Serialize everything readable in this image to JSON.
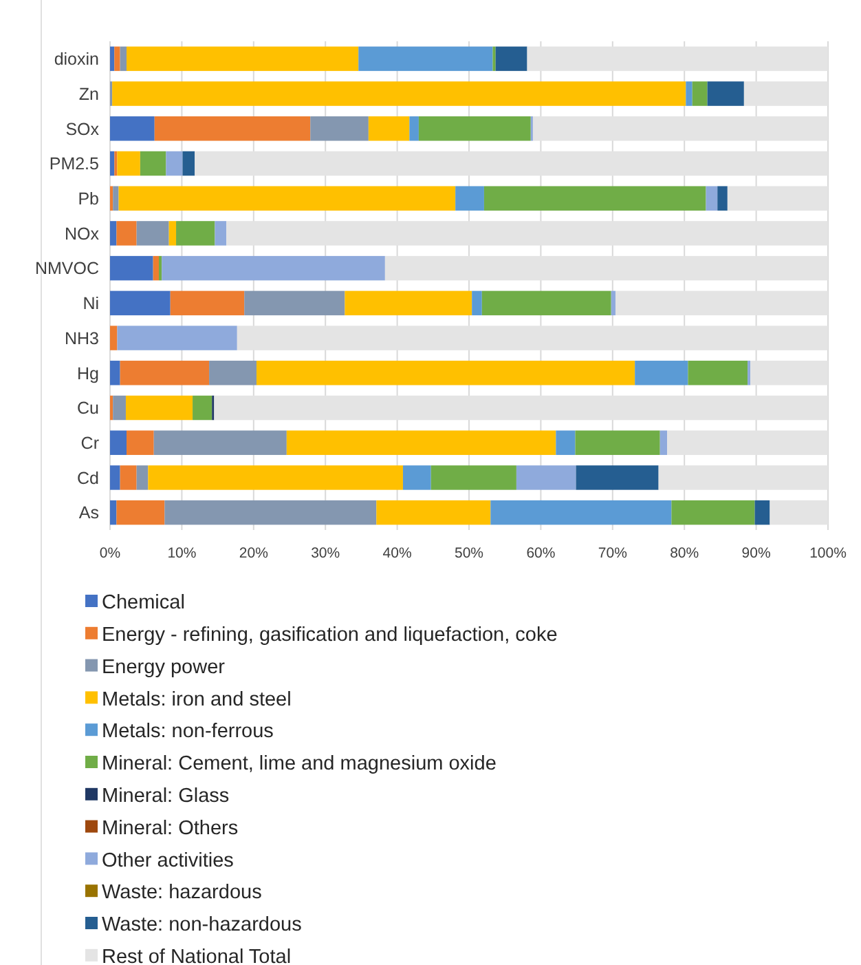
{
  "chart_data": {
    "type": "bar",
    "orientation": "horizontal",
    "stacked": true,
    "categories": [
      "dioxin",
      "Zn",
      "SOx",
      "PM2.5",
      "Pb",
      "NOx",
      "NMVOC",
      "Ni",
      "NH3",
      "Hg",
      "Cu",
      "Cr",
      "Cd",
      "As"
    ],
    "xlim": [
      0,
      100
    ],
    "xticks": [
      {
        "value": 0,
        "label": "0%"
      },
      {
        "value": 10,
        "label": "10%"
      },
      {
        "value": 20,
        "label": "20%"
      },
      {
        "value": 30,
        "label": "30%"
      },
      {
        "value": 40,
        "label": "40%"
      },
      {
        "value": 50,
        "label": "50%"
      },
      {
        "value": 60,
        "label": "60%"
      },
      {
        "value": 70,
        "label": "70%"
      },
      {
        "value": 80,
        "label": "80%"
      },
      {
        "value": 90,
        "label": "90%"
      },
      {
        "value": 100,
        "label": "100%"
      }
    ],
    "grid": "x",
    "legend": "bottom",
    "series": [
      {
        "name": "Chemical",
        "color": "#4472c4",
        "values": [
          0.6,
          0,
          6.2,
          0.6,
          0,
          0.9,
          6.0,
          8.4,
          0,
          1.4,
          0,
          2.3,
          1.4,
          0.9
        ]
      },
      {
        "name": "Energy - refining, gasification and liquefaction, coke",
        "color": "#ed7d31",
        "values": [
          0.8,
          0,
          21.7,
          0.4,
          0.4,
          2.8,
          0.8,
          10.3,
          1.0,
          12.4,
          0.4,
          3.8,
          2.3,
          6.7
        ]
      },
      {
        "name": "Energy power",
        "color": "#8497b0",
        "values": [
          0.9,
          0.3,
          8.1,
          0,
          0.8,
          4.5,
          0,
          14.0,
          0,
          6.6,
          1.8,
          18.5,
          1.6,
          29.5
        ]
      },
      {
        "name": "Metals: iron and steel",
        "color": "#ffc000",
        "values": [
          32.3,
          79.9,
          5.7,
          3.2,
          46.9,
          1.0,
          0,
          17.7,
          0,
          52.7,
          9.3,
          37.5,
          35.5,
          15.9
        ]
      },
      {
        "name": "Metals: non-ferrous",
        "color": "#5b9bd5",
        "values": [
          18.7,
          0.9,
          1.3,
          0,
          4.0,
          0,
          0,
          1.4,
          0,
          7.4,
          0,
          2.7,
          3.9,
          25.2
        ]
      },
      {
        "name": "Mineral: Cement, lime and magnesium oxide",
        "color": "#70ad47",
        "values": [
          0.4,
          2.1,
          15.6,
          3.6,
          30.9,
          5.4,
          0.4,
          18.0,
          0,
          8.3,
          2.7,
          11.8,
          11.9,
          11.6
        ]
      },
      {
        "name": "Mineral: Glass",
        "color": "#203864",
        "values": [
          0,
          0,
          0,
          0,
          0,
          0,
          0,
          0,
          0,
          0,
          0.3,
          0,
          0,
          0
        ]
      },
      {
        "name": "Mineral: Others",
        "color": "#9e480e",
        "values": [
          0,
          0,
          0,
          0,
          0,
          0,
          0,
          0,
          0,
          0,
          0,
          0,
          0,
          0
        ]
      },
      {
        "name": "Other activities",
        "color": "#8faadc",
        "values": [
          0,
          0,
          0.3,
          2.3,
          1.6,
          1.6,
          31.1,
          0.6,
          16.7,
          0.4,
          0,
          1.0,
          8.3,
          0
        ]
      },
      {
        "name": "Waste: hazardous",
        "color": "#997300",
        "values": [
          0,
          0,
          0,
          0,
          0,
          0,
          0,
          0,
          0,
          0,
          0,
          0,
          0,
          0
        ]
      },
      {
        "name": "Waste: non-hazardous",
        "color": "#255e91",
        "values": [
          4.4,
          5.1,
          0,
          1.7,
          1.4,
          0,
          0,
          0,
          0,
          0,
          0,
          0,
          11.5,
          2.1
        ]
      },
      {
        "name": "Rest of National Total",
        "color": "#e4e4e4",
        "values": [
          41.9,
          11.7,
          41.1,
          88.2,
          14.0,
          83.8,
          61.7,
          29.6,
          82.3,
          10.8,
          85.5,
          22.4,
          23.6,
          8.1
        ]
      }
    ]
  }
}
